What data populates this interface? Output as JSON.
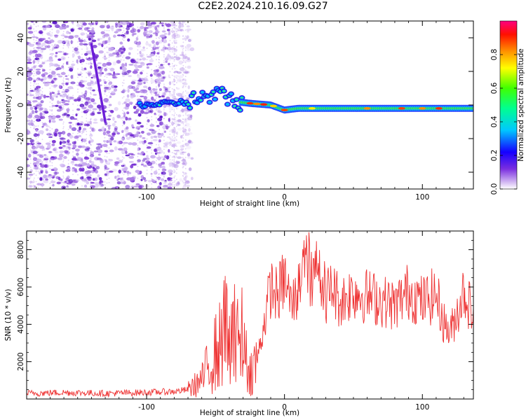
{
  "title": "C2E2.2024.210.16.09.G27",
  "chart_data": [
    {
      "type": "heatmap",
      "xlabel": "Height of straight line (km)",
      "ylabel": "Frequency (Hz)",
      "xlim": [
        -187,
        137
      ],
      "ylim": [
        -50,
        50
      ],
      "xticks": [
        -100,
        0,
        100
      ],
      "yticks": [
        -40,
        -20,
        0,
        20,
        40
      ],
      "colorbar": {
        "label": "Normalized spectral amplitude",
        "range": [
          0.0,
          1.0
        ],
        "ticks": [
          "0.0",
          "0.2",
          "0.4",
          "0.6",
          "0.8"
        ],
        "colormap": "rainbow"
      },
      "features": [
        {
          "kind": "noise",
          "x_range": [
            -187,
            -70
          ],
          "y_range": [
            -50,
            50
          ],
          "amplitude": "low"
        },
        {
          "kind": "streak",
          "x_range": [
            -140,
            -130
          ],
          "y_range": [
            -10,
            36
          ],
          "amplitude": "low"
        },
        {
          "kind": "track",
          "points": [
            [
              -105,
              0
            ],
            [
              -80,
              1
            ],
            [
              -60,
              4
            ],
            [
              -45,
              6
            ],
            [
              -35,
              2
            ],
            [
              -25,
              1
            ],
            [
              -10,
              0
            ],
            [
              0,
              -3
            ],
            [
              10,
              -2
            ],
            [
              50,
              -2
            ],
            [
              137,
              -2
            ]
          ],
          "amplitude": "high"
        }
      ]
    },
    {
      "type": "line",
      "xlabel": "Height of straight line (km)",
      "ylabel": "SNR (10 * v/v)",
      "xlim": [
        -187,
        137
      ],
      "ylim": [
        0,
        9000
      ],
      "xticks": [
        -100,
        0,
        100
      ],
      "yticks": [
        2000,
        4000,
        6000,
        8000
      ],
      "series": [
        {
          "color": "#ee3333",
          "x": [
            -187,
            -160,
            -130,
            -100,
            -80,
            -70,
            -60,
            -55,
            -50,
            -45,
            -40,
            -35,
            -30,
            -25,
            -20,
            -15,
            -10,
            -5,
            0,
            5,
            10,
            15,
            20,
            25,
            30,
            35,
            40,
            50,
            60,
            70,
            80,
            90,
            100,
            110,
            115,
            120,
            125,
            130,
            137
          ],
          "y": [
            300,
            350,
            300,
            350,
            400,
            500,
            1000,
            1800,
            2500,
            3000,
            4500,
            3000,
            2500,
            1500,
            2000,
            4000,
            6000,
            5500,
            6500,
            5000,
            5800,
            8500,
            6000,
            7500,
            5500,
            6000,
            5200,
            5800,
            5500,
            5300,
            5000,
            5800,
            5200,
            5600,
            4200,
            3500,
            4600,
            5800,
            4500
          ]
        }
      ]
    }
  ]
}
